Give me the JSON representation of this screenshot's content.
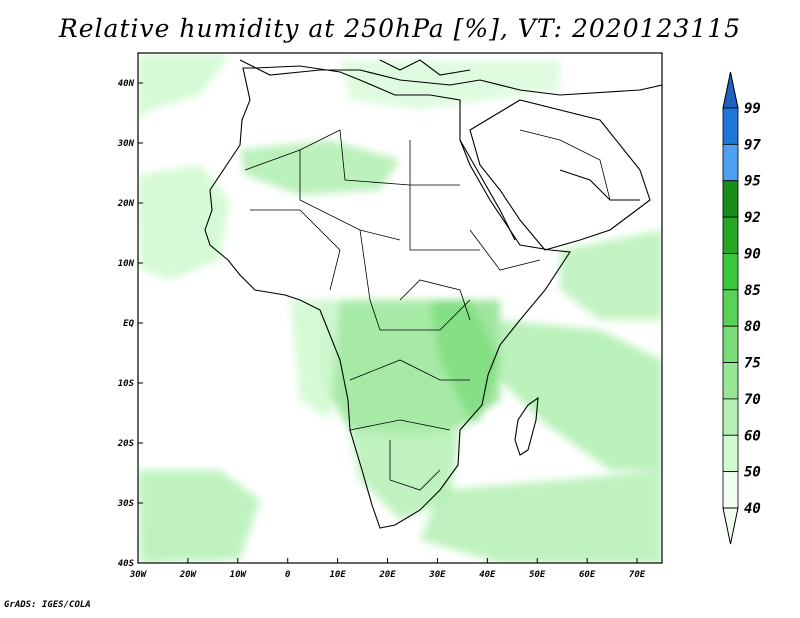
{
  "title": "Relative humidity at 250hPa [%], VT: 2020123115",
  "credit": "GrADS: IGES/COLA",
  "map": {
    "lon_range": [
      -30,
      75
    ],
    "lat_range": [
      -40,
      45
    ],
    "lon_ticks": [
      "30W",
      "20W",
      "10W",
      "0",
      "10E",
      "20E",
      "30E",
      "40E",
      "50E",
      "60E",
      "70E"
    ],
    "lat_ticks": [
      "40N",
      "30N",
      "20N",
      "10N",
      "EQ",
      "10S",
      "20S",
      "30S",
      "40S"
    ]
  },
  "colorbar": {
    "levels": [
      "99",
      "97",
      "95",
      "92",
      "90",
      "85",
      "80",
      "75",
      "70",
      "60",
      "50",
      "40"
    ],
    "colors": [
      "#2060c0",
      "#1e78dc",
      "#4ea0f0",
      "#1a8c1a",
      "#26a826",
      "#3cc83c",
      "#5ad25a",
      "#78dc78",
      "#96e696",
      "#b4f0b4",
      "#d2fad2",
      "#f0fff0"
    ]
  },
  "fill_colors": {
    "light": "#d2fad2",
    "mid": "#b4f0b4",
    "strong": "#96e696"
  }
}
